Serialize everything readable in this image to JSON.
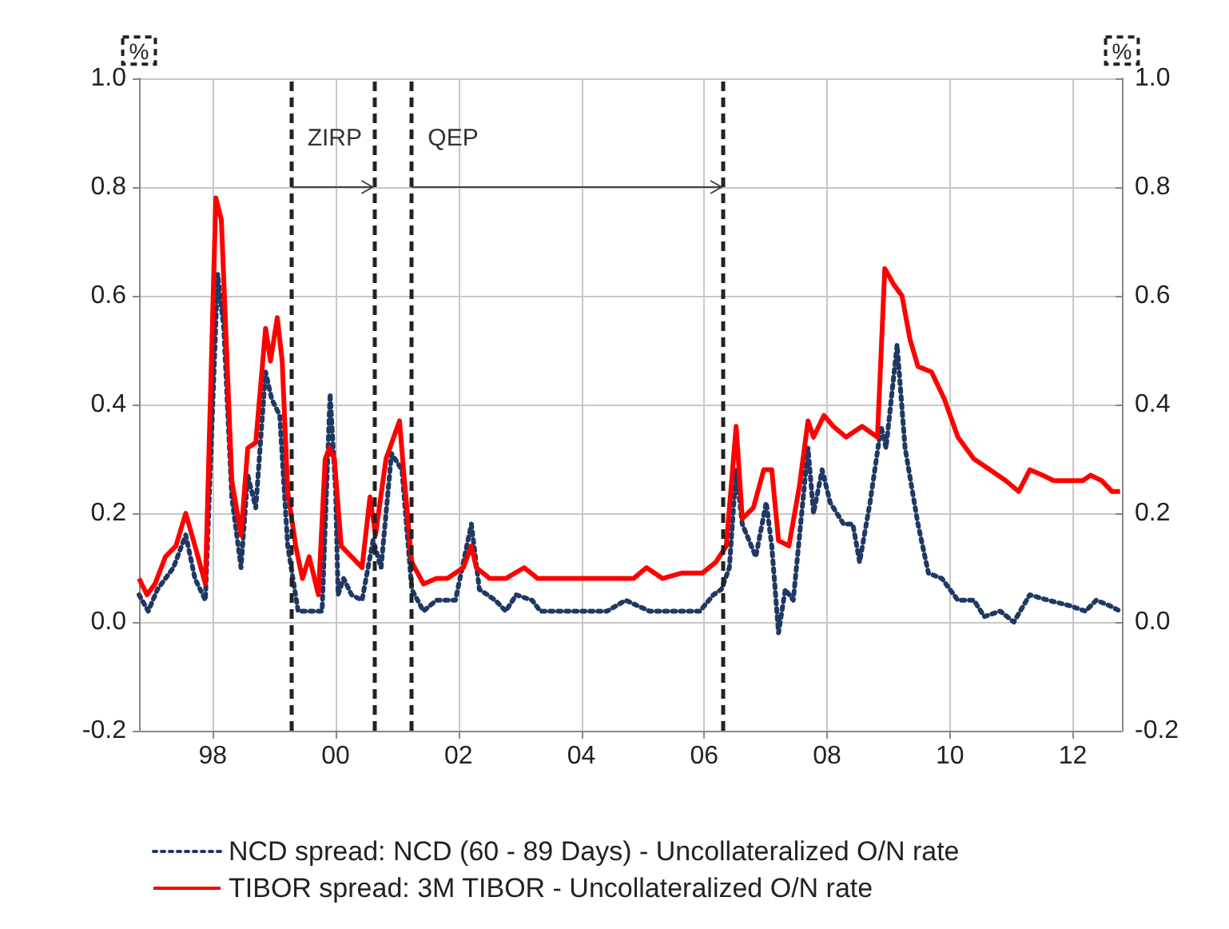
{
  "chart_data": {
    "type": "line",
    "ylabel": "%",
    "y2label": "%",
    "xlim": [
      1996.8,
      2012.8
    ],
    "xticks": [
      {
        "value": 1998,
        "label": "98"
      },
      {
        "value": 2000,
        "label": "00"
      },
      {
        "value": 2002,
        "label": "02"
      },
      {
        "value": 2004,
        "label": "04"
      },
      {
        "value": 2006,
        "label": "06"
      },
      {
        "value": 2008,
        "label": "08"
      },
      {
        "value": 2010,
        "label": "10"
      },
      {
        "value": 2012,
        "label": "12"
      }
    ],
    "ylim": [
      -0.2,
      1.0
    ],
    "yticks": [
      {
        "value": -0.2,
        "label": "-0.2"
      },
      {
        "value": 0,
        "label": "0.0"
      },
      {
        "value": 0.2,
        "label": "0.2"
      },
      {
        "value": 0.4,
        "label": "0.4"
      },
      {
        "value": 0.6,
        "label": "0.6"
      },
      {
        "value": 0.8,
        "label": "0.8"
      },
      {
        "value": 1.0,
        "label": "1.0"
      }
    ],
    "y2lim": [
      -0.2,
      1.0
    ],
    "y2ticks": [
      {
        "value": -0.2,
        "label": "-0.2"
      },
      {
        "value": 0,
        "label": "0.0"
      },
      {
        "value": 0.2,
        "label": "0.2"
      },
      {
        "value": 0.4,
        "label": "0.4"
      },
      {
        "value": 0.6,
        "label": "0.6"
      },
      {
        "value": 0.8,
        "label": "0.8"
      },
      {
        "value": 1.0,
        "label": "1.0"
      }
    ],
    "grid": true,
    "legend": "bottom",
    "marker": "none",
    "series": [
      {
        "name": "NCD spread: NCD (60 - 89 Days) - Uncollateralized O/N rate",
        "color": "#1f3864",
        "line_style": "dotted",
        "x": [
          1996.8,
          1996.95,
          1997.1,
          1997.36,
          1997.56,
          1997.71,
          1997.88,
          1998.08,
          1998.18,
          1998.31,
          1998.46,
          1998.57,
          1998.7,
          1998.86,
          1998.96,
          1999.09,
          1999.22,
          1999.39,
          1999.61,
          1999.78,
          1999.91,
          2000.0,
          2000.04,
          2000.13,
          2000.26,
          2000.43,
          2000.61,
          2000.74,
          2000.91,
          2001.08,
          2001.24,
          2001.43,
          2001.64,
          2001.95,
          2002.21,
          2002.34,
          2002.6,
          2002.77,
          2002.94,
          2003.2,
          2003.33,
          2003.64,
          2003.98,
          2004.42,
          2004.72,
          2005.11,
          2005.45,
          2005.93,
          2006.15,
          2006.28,
          2006.41,
          2006.52,
          2006.62,
          2006.84,
          2007.01,
          2007.1,
          2007.21,
          2007.32,
          2007.45,
          2007.69,
          2007.78,
          2007.92,
          2008.05,
          2008.27,
          2008.42,
          2008.53,
          2008.7,
          2008.88,
          2008.96,
          2009.14,
          2009.27,
          2009.48,
          2009.65,
          2009.87,
          2010.13,
          2010.39,
          2010.56,
          2010.82,
          2011.04,
          2011.3,
          2011.6,
          2011.95,
          2012.21,
          2012.38,
          2012.6,
          2012.77
        ],
        "values": [
          0.05,
          0.02,
          0.06,
          0.1,
          0.16,
          0.08,
          0.04,
          0.64,
          0.54,
          0.23,
          0.1,
          0.27,
          0.21,
          0.46,
          0.41,
          0.38,
          0.14,
          0.02,
          0.02,
          0.02,
          0.42,
          0.24,
          0.05,
          0.08,
          0.05,
          0.04,
          0.15,
          0.1,
          0.31,
          0.28,
          0.06,
          0.02,
          0.04,
          0.04,
          0.18,
          0.06,
          0.04,
          0.02,
          0.05,
          0.04,
          0.02,
          0.02,
          0.02,
          0.02,
          0.04,
          0.02,
          0.02,
          0.02,
          0.05,
          0.06,
          0.1,
          0.28,
          0.18,
          0.12,
          0.22,
          0.14,
          -0.02,
          0.06,
          0.04,
          0.32,
          0.2,
          0.28,
          0.22,
          0.18,
          0.18,
          0.11,
          0.22,
          0.36,
          0.32,
          0.51,
          0.32,
          0.18,
          0.09,
          0.08,
          0.04,
          0.04,
          0.01,
          0.02,
          0.0,
          0.05,
          0.04,
          0.03,
          0.02,
          0.04,
          0.03,
          0.02
        ]
      },
      {
        "name": "TIBOR spread: 3M TIBOR - Uncollateralized O/N rate",
        "color": "#ff0000",
        "line_style": "solid",
        "x": [
          1996.8,
          1996.93,
          1997.06,
          1997.23,
          1997.4,
          1997.56,
          1997.71,
          1997.88,
          1998.05,
          1998.14,
          1998.31,
          1998.46,
          1998.57,
          1998.7,
          1998.86,
          1998.94,
          1999.05,
          1999.13,
          1999.22,
          1999.35,
          1999.46,
          1999.57,
          1999.72,
          1999.83,
          1999.9,
          1999.98,
          2000.09,
          2000.26,
          2000.43,
          2000.56,
          2000.65,
          2000.82,
          2001.04,
          2001.12,
          2001.24,
          2001.43,
          2001.64,
          2001.82,
          2002.08,
          2002.21,
          2002.29,
          2002.51,
          2002.77,
          2003.07,
          2003.29,
          2003.55,
          2003.98,
          2004.42,
          2004.85,
          2005.06,
          2005.32,
          2005.63,
          2005.97,
          2006.19,
          2006.36,
          2006.52,
          2006.62,
          2006.8,
          2006.97,
          2007.1,
          2007.21,
          2007.38,
          2007.55,
          2007.69,
          2007.78,
          2007.95,
          2008.1,
          2008.31,
          2008.57,
          2008.82,
          2008.94,
          2009.09,
          2009.22,
          2009.35,
          2009.48,
          2009.7,
          2009.91,
          2010.13,
          2010.39,
          2010.65,
          2010.91,
          2011.12,
          2011.3,
          2011.51,
          2011.69,
          2011.95,
          2012.16,
          2012.29,
          2012.47,
          2012.64,
          2012.77
        ],
        "values": [
          0.08,
          0.05,
          0.07,
          0.12,
          0.14,
          0.2,
          0.14,
          0.07,
          0.78,
          0.74,
          0.26,
          0.16,
          0.32,
          0.33,
          0.54,
          0.48,
          0.56,
          0.48,
          0.24,
          0.14,
          0.08,
          0.12,
          0.05,
          0.3,
          0.32,
          0.3,
          0.14,
          0.12,
          0.1,
          0.23,
          0.16,
          0.3,
          0.37,
          0.26,
          0.11,
          0.07,
          0.08,
          0.08,
          0.1,
          0.14,
          0.1,
          0.08,
          0.08,
          0.1,
          0.08,
          0.08,
          0.08,
          0.08,
          0.08,
          0.1,
          0.08,
          0.09,
          0.09,
          0.11,
          0.14,
          0.36,
          0.19,
          0.21,
          0.28,
          0.28,
          0.15,
          0.14,
          0.25,
          0.37,
          0.34,
          0.38,
          0.36,
          0.34,
          0.36,
          0.34,
          0.65,
          0.62,
          0.6,
          0.52,
          0.47,
          0.46,
          0.41,
          0.34,
          0.3,
          0.28,
          0.26,
          0.24,
          0.28,
          0.27,
          0.26,
          0.26,
          0.26,
          0.27,
          0.26,
          0.24,
          0.24
        ]
      }
    ],
    "ref_lines": [
      {
        "axis": "x",
        "value": 1999.28,
        "color": "#222222",
        "line_style": "dashed"
      },
      {
        "axis": "x",
        "value": 2000.63,
        "color": "#222222",
        "line_style": "dashed"
      },
      {
        "axis": "x",
        "value": 2001.24,
        "color": "#222222",
        "line_style": "dashed"
      },
      {
        "axis": "x",
        "value": 2006.31,
        "color": "#222222",
        "line_style": "dashed"
      }
    ],
    "annotations": [
      "ZIRP",
      "QEP"
    ]
  }
}
